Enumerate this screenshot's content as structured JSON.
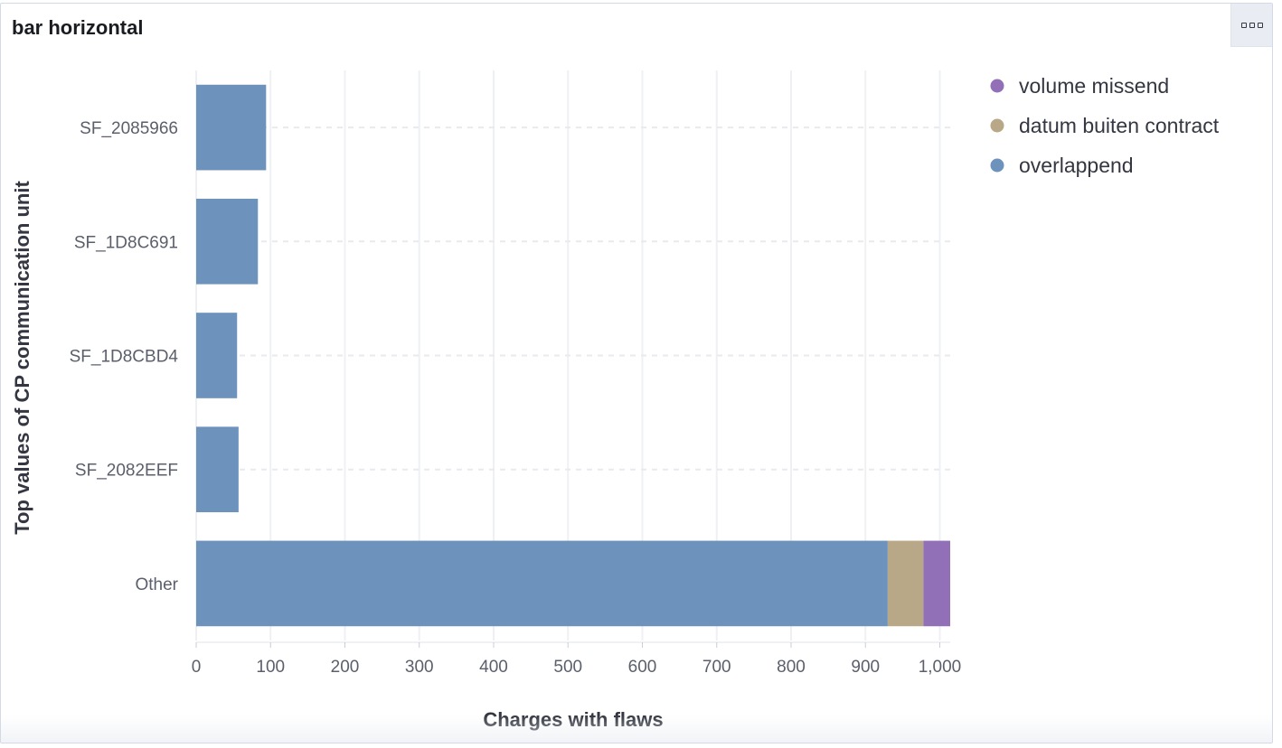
{
  "panel": {
    "title": "bar horizontal",
    "menu_icon": "options-menu-icon"
  },
  "chart_data": {
    "type": "bar",
    "orientation": "horizontal",
    "stacked": true,
    "categories": [
      "SF_2085966",
      "SF_1D8C691",
      "SF_1D8CBD4",
      "SF_2082EEF",
      "Other"
    ],
    "series": [
      {
        "name": "overlappend",
        "color": "#6d93bd",
        "values": [
          94,
          83,
          55,
          57,
          930
        ]
      },
      {
        "name": "datum buiten contract",
        "color": "#b9a888",
        "values": [
          0,
          0,
          0,
          0,
          48
        ]
      },
      {
        "name": "volume missend",
        "color": "#9170b8",
        "values": [
          0,
          0,
          0,
          0,
          36
        ]
      }
    ],
    "legend_order": [
      "volume missend",
      "datum buiten contract",
      "overlappend"
    ],
    "xlabel": "Charges with flaws",
    "ylabel": "Top values of CP communication unit",
    "xlim": [
      0,
      1014
    ],
    "xticks": [
      0,
      100,
      200,
      300,
      400,
      500,
      600,
      700,
      800,
      900,
      1000
    ],
    "xtick_labels": [
      "0",
      "100",
      "200",
      "300",
      "400",
      "500",
      "600",
      "700",
      "800",
      "900",
      "1,000"
    ],
    "grid": true,
    "legend_position": "top-right"
  }
}
